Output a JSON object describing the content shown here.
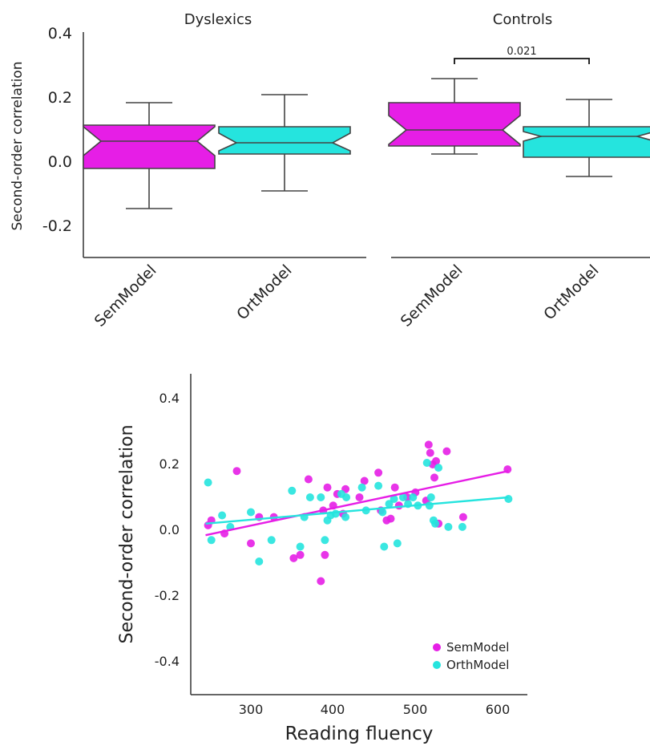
{
  "chart_data": [
    {
      "type": "box",
      "panel_title": "Dyslexics",
      "ylabel": "Second-order correlation",
      "ylim": [
        -0.3,
        0.4
      ],
      "yticks": [
        0.4,
        0.2,
        0.0,
        -0.2
      ],
      "ytick_labels": [
        "0.4",
        "0.2",
        "0.0",
        "-0.2"
      ],
      "grid": false,
      "notched": true,
      "categories": [
        "SemModel",
        "OrtModel"
      ],
      "boxes": [
        {
          "category": "SemModel",
          "color": "#e61ee6",
          "whisker_low": -0.15,
          "q1": -0.025,
          "median": 0.06,
          "q3": 0.11,
          "whisker_high": 0.18,
          "notch_low": 0.015,
          "notch_high": 0.105
        },
        {
          "category": "OrtModel",
          "color": "#25e4de",
          "whisker_low": -0.095,
          "q1": 0.02,
          "median": 0.055,
          "q3": 0.105,
          "whisker_high": 0.205,
          "notch_low": 0.03,
          "notch_high": 0.085
        }
      ]
    },
    {
      "type": "box",
      "panel_title": "Controls",
      "ylim": [
        -0.3,
        0.4
      ],
      "grid": false,
      "notched": true,
      "categories": [
        "SemModel",
        "OrtModel"
      ],
      "boxes": [
        {
          "category": "SemModel",
          "color": "#e61ee6",
          "whisker_low": 0.02,
          "q1": 0.045,
          "median": 0.095,
          "q3": 0.18,
          "whisker_high": 0.255,
          "notch_low": 0.05,
          "notch_high": 0.14
        },
        {
          "category": "OrtModel",
          "color": "#25e4de",
          "whisker_low": -0.05,
          "q1": 0.01,
          "median": 0.075,
          "q3": 0.105,
          "whisker_high": 0.19,
          "notch_low": 0.06,
          "notch_high": 0.09
        }
      ],
      "annotation": {
        "text": "0.021",
        "between": [
          "SemModel",
          "OrtModel"
        ],
        "at_y": 0.32
      }
    },
    {
      "type": "scatter",
      "xlabel": "Reading fluency",
      "ylabel": "Second-order correlation",
      "xlim": [
        230,
        640
      ],
      "ylim": [
        -0.5,
        0.47
      ],
      "xticks": [
        300,
        400,
        500,
        600
      ],
      "xtick_labels": [
        "300",
        "400",
        "500",
        "600"
      ],
      "yticks": [
        0.4,
        0.2,
        0.0,
        -0.2,
        -0.4
      ],
      "ytick_labels": [
        "0.4",
        "0.2",
        "0.0",
        "-0.2",
        "-0.4"
      ],
      "grid": false,
      "legend_position": "bottom-right",
      "series": [
        {
          "name": "SemModel",
          "color": "#e61ee6",
          "points": [
            [
              248,
              0.015
            ],
            [
              252,
              0.03
            ],
            [
              268,
              -0.01
            ],
            [
              283,
              0.18
            ],
            [
              300,
              -0.04
            ],
            [
              310,
              0.04
            ],
            [
              328,
              0.04
            ],
            [
              352,
              -0.085
            ],
            [
              360,
              -0.075
            ],
            [
              370,
              0.155
            ],
            [
              385,
              -0.155
            ],
            [
              388,
              0.06
            ],
            [
              390,
              -0.075
            ],
            [
              393,
              0.13
            ],
            [
              400,
              0.075
            ],
            [
              405,
              0.11
            ],
            [
              412,
              0.05
            ],
            [
              415,
              0.125
            ],
            [
              432,
              0.1
            ],
            [
              438,
              0.15
            ],
            [
              455,
              0.175
            ],
            [
              458,
              0.06
            ],
            [
              465,
              0.03
            ],
            [
              470,
              0.035
            ],
            [
              475,
              0.13
            ],
            [
              480,
              0.075
            ],
            [
              490,
              0.1
            ],
            [
              500,
              0.115
            ],
            [
              513,
              0.09
            ],
            [
              516,
              0.26
            ],
            [
              518,
              0.235
            ],
            [
              521,
              0.2
            ],
            [
              523,
              0.16
            ],
            [
              525,
              0.21
            ],
            [
              528,
              0.02
            ],
            [
              538,
              0.24
            ],
            [
              558,
              0.04
            ],
            [
              612,
              0.185
            ]
          ]
        },
        {
          "name": "OrthModel",
          "color": "#25e4de",
          "points": [
            [
              248,
              0.145
            ],
            [
              252,
              -0.03
            ],
            [
              265,
              0.045
            ],
            [
              275,
              0.01
            ],
            [
              300,
              0.055
            ],
            [
              310,
              -0.095
            ],
            [
              325,
              -0.03
            ],
            [
              350,
              0.12
            ],
            [
              360,
              -0.05
            ],
            [
              365,
              0.04
            ],
            [
              372,
              0.1
            ],
            [
              385,
              0.1
            ],
            [
              390,
              -0.03
            ],
            [
              393,
              0.03
            ],
            [
              397,
              0.045
            ],
            [
              403,
              0.05
            ],
            [
              410,
              0.11
            ],
            [
              415,
              0.04
            ],
            [
              416,
              0.1
            ],
            [
              435,
              0.13
            ],
            [
              440,
              0.06
            ],
            [
              455,
              0.135
            ],
            [
              460,
              0.055
            ],
            [
              462,
              -0.05
            ],
            [
              468,
              0.08
            ],
            [
              474,
              0.095
            ],
            [
              478,
              -0.04
            ],
            [
              485,
              0.1
            ],
            [
              491,
              0.08
            ],
            [
              497,
              0.1
            ],
            [
              503,
              0.075
            ],
            [
              514,
              0.205
            ],
            [
              517,
              0.075
            ],
            [
              519,
              0.1
            ],
            [
              522,
              0.03
            ],
            [
              524,
              0.02
            ],
            [
              528,
              0.19
            ],
            [
              540,
              0.01
            ],
            [
              557,
              0.01
            ],
            [
              613,
              0.095
            ]
          ]
        }
      ],
      "fit_lines": [
        {
          "series": "SemModel",
          "x": [
            245,
            613
          ],
          "y": [
            -0.015,
            0.18
          ]
        },
        {
          "series": "OrthModel",
          "x": [
            245,
            613
          ],
          "y": [
            0.02,
            0.1
          ]
        }
      ]
    }
  ],
  "panel_a": {
    "title_left": "Dyslexics",
    "title_right": "Controls",
    "ylabel": "Second-order correlation",
    "yticks": [
      "0.4",
      "0.2",
      "0.0",
      "-0.2"
    ],
    "xtick_sem_left": "SemModel",
    "xtick_ort_left": "OrtModel",
    "xtick_sem_right": "SemModel",
    "xtick_ort_right": "OrtModel",
    "annotation": "0.021"
  },
  "panel_b": {
    "xlabel": "Reading fluency",
    "ylabel": "Second-order correlation",
    "xticks": [
      "300",
      "400",
      "500",
      "600"
    ],
    "yticks": [
      "0.4",
      "0.2",
      "0.0",
      "-0.2",
      "-0.4"
    ],
    "legend": [
      {
        "label": "SemModel",
        "color": "#e61ee6"
      },
      {
        "label": "OrthModel",
        "color": "#25e4de"
      }
    ]
  }
}
